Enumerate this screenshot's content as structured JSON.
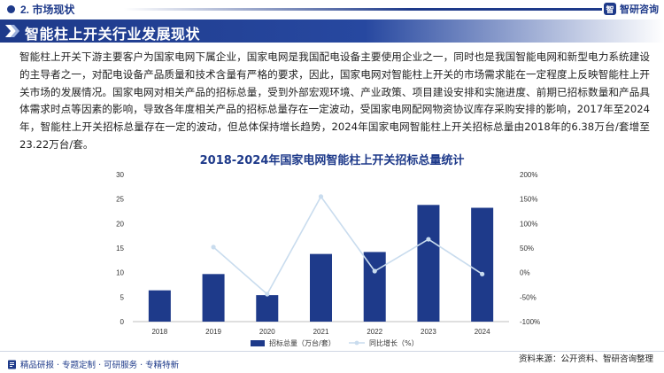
{
  "header": {
    "section_label": "2. 市场现状",
    "logo_text": "智研咨询",
    "logo_mark": "智"
  },
  "banner": {
    "title": "智能柱上开关行业发展现状"
  },
  "paragraph": "智能柱上开关下游主要客户为国家电网下属企业，国家电网是我国配电设备主要使用企业之一，同时也是我国智能电网和新型电力系统建设的主导者之一，对配电设备产品质量和技术含量有严格的要求，因此，国家电网对智能柱上开关的市场需求能在一定程度上反映智能柱上开关市场的发展情况。国家电网对相关产品的招标总量，受到外部宏观环境、产业政策、项目建设安排和实施进度、前期已招标数量和产品具体需求时点等因素的影响，导致各年度相关产品的招标总量存在一定波动，受国家电网配网物资协议库存采购安排的影响，2017年至2024年，智能柱上开关招标总量存在一定的波动，但总体保持增长趋势，2024年国家电网智能柱上开关招标总量由2018年的6.38万台/套增至23.22万台/套。",
  "footer": {
    "left_text": "精品研报 · 专题定制 · 可研服务 · 专精特新",
    "source": "资料来源：公开资料、智研咨询整理"
  },
  "colors": {
    "bar": "#1e3a8a",
    "line": "#c9dcee",
    "accent": "#1e3a8a"
  },
  "chart_data": {
    "type": "bar",
    "title": "2018-2024年国家电网智能柱上开关招标总量统计",
    "categories": [
      "2018",
      "2019",
      "2020",
      "2021",
      "2022",
      "2023",
      "2024"
    ],
    "series": [
      {
        "name": "招标总量（万台/套）",
        "type": "bar",
        "axis": "left",
        "values": [
          6.38,
          9.7,
          5.4,
          13.8,
          14.2,
          23.8,
          23.22
        ]
      },
      {
        "name": "同比增长（%）",
        "type": "line",
        "axis": "right",
        "values": [
          null,
          52,
          -44,
          155,
          3,
          68,
          -3
        ]
      }
    ],
    "ylim": [
      0,
      30
    ],
    "yticks": [
      "0",
      "5",
      "10",
      "15",
      "20",
      "25",
      "30"
    ],
    "y2lim": [
      -100,
      200
    ],
    "y2ticks": [
      "-100%",
      "-50%",
      "0%",
      "50%",
      "100%",
      "150%",
      "200%"
    ],
    "grid": false,
    "legend": "bottom"
  }
}
